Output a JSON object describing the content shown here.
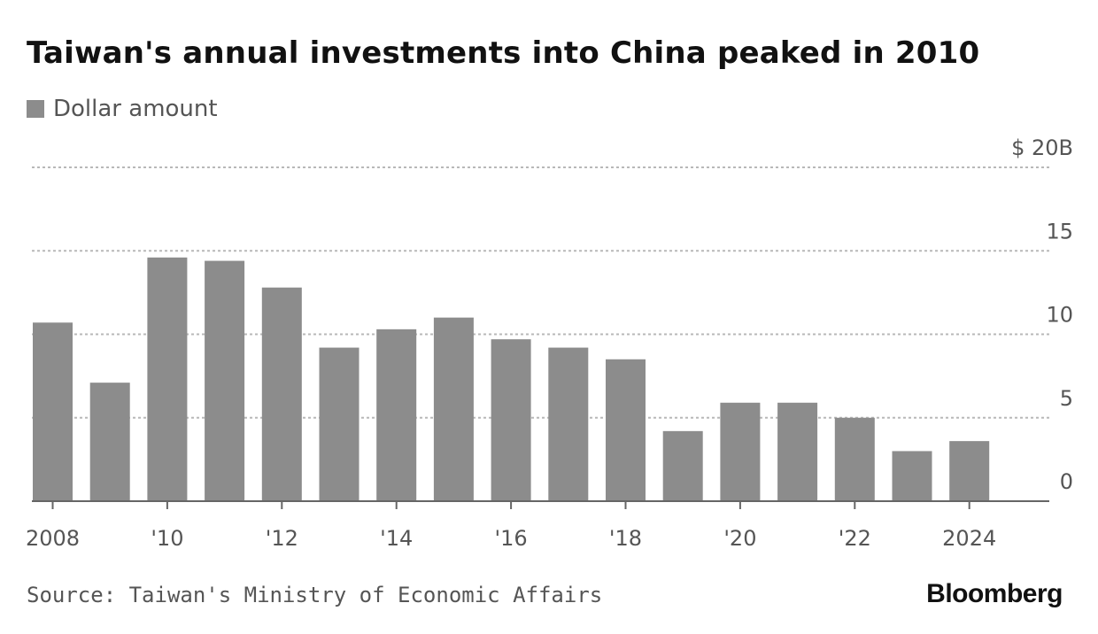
{
  "header": {
    "title": "Taiwan's annual investments into China peaked in 2010"
  },
  "legend": {
    "label": "Dollar amount",
    "color": "#8c8c8c"
  },
  "footer": {
    "source": "Source: Taiwan's Ministry of Economic Affairs",
    "brand": "Bloomberg"
  },
  "chart_data": {
    "type": "bar",
    "title": "Taiwan's annual investments into China peaked in 2010",
    "xlabel": "",
    "ylabel": "",
    "ylim": [
      0,
      20
    ],
    "grid": true,
    "bar_color": "#8c8c8c",
    "categories": [
      "2008",
      "2009",
      "2010",
      "2011",
      "2012",
      "2013",
      "2014",
      "2015",
      "2016",
      "2017",
      "2018",
      "2019",
      "2020",
      "2021",
      "2022",
      "2023",
      "2024"
    ],
    "series": [
      {
        "name": "Dollar amount",
        "values": [
          10.7,
          7.1,
          14.6,
          14.4,
          12.8,
          9.2,
          10.3,
          11.0,
          9.7,
          9.2,
          8.5,
          4.2,
          5.9,
          5.9,
          5.0,
          3.0,
          3.6
        ]
      }
    ],
    "y_ticks": [
      {
        "value": 20,
        "label": "$ 20B"
      },
      {
        "value": 15,
        "label": "15"
      },
      {
        "value": 10,
        "label": "10"
      },
      {
        "value": 5,
        "label": "5"
      },
      {
        "value": 0,
        "label": "0"
      }
    ],
    "x_ticks": [
      {
        "category": "2008",
        "label": "2008"
      },
      {
        "category": "2010",
        "label": "'10"
      },
      {
        "category": "2012",
        "label": "'12"
      },
      {
        "category": "2014",
        "label": "'14"
      },
      {
        "category": "2016",
        "label": "'16"
      },
      {
        "category": "2018",
        "label": "'18"
      },
      {
        "category": "2020",
        "label": "'20"
      },
      {
        "category": "2022",
        "label": "'22"
      },
      {
        "category": "2024",
        "label": "2024"
      }
    ]
  }
}
